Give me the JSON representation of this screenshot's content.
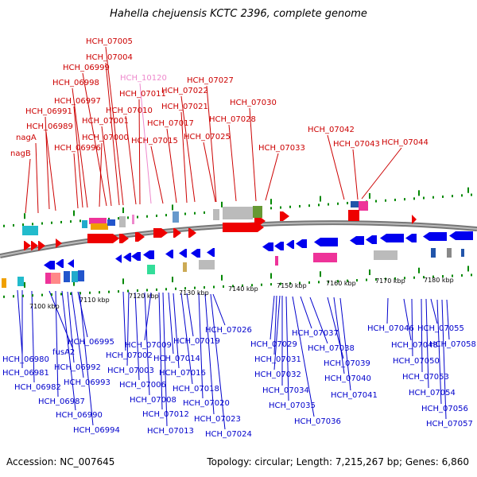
{
  "title": "Hahella chejuensis KCTC 2396, complete genome",
  "footer": {
    "accession": "Accession: NC_007645",
    "summary": "Topology: circular; Length: 7,215,267 bp; Genes: 6,860"
  },
  "colors": {
    "forward_label": "#cc0000",
    "reverse_label": "#0000cc",
    "pink_label": "#ee88cc",
    "forward_gene": "#ee0000",
    "reverse_gene": "#0000ee",
    "backbone": "#888888",
    "ticks": "#008800"
  },
  "scale_labels": [
    "7100 kbp",
    "7110 kbp",
    "7120 kbp",
    "7130 kbp",
    "7140 kbp",
    "7150 kbp",
    "7160 kbp",
    "7170 kbp",
    "7180 kbp"
  ],
  "top_genes": [
    "nagB",
    "nagA",
    "HCH_06989",
    "HCH_06991",
    "HCH_06996",
    "HCH_06997",
    "HCH_06998",
    "HCH_07000",
    "HCH_06999",
    "HCH_07001",
    "HCH_07004",
    "HCH_07005",
    "HCH_07010",
    "HCH_07011",
    "HCH_10120",
    "HCH_07015",
    "HCH_07017",
    "HCH_07021",
    "HCH_07022",
    "HCH_07025",
    "HCH_07027",
    "HCH_07028",
    "HCH_07030",
    "HCH_07033",
    "HCH_07042",
    "HCH_07043",
    "HCH_07044"
  ],
  "bottom_genes": [
    "HCH_06980",
    "HCH_06981",
    "HCH_06982",
    "fusA2",
    "HCH_06987",
    "HCH_06990",
    "HCH_06992",
    "HCH_06993",
    "HCH_06994",
    "HCH_06995",
    "HCH_07002",
    "HCH_07003",
    "HCH_07006",
    "HCH_07008",
    "HCH_07009",
    "HCH_07012",
    "HCH_07013",
    "HCH_07014",
    "HCH_07016",
    "HCH_07018",
    "HCH_07019",
    "HCH_07020",
    "HCH_07023",
    "HCH_07024",
    "HCH_07026",
    "HCH_07029",
    "HCH_07031",
    "HCH_07032",
    "HCH_07034",
    "HCH_07035",
    "HCH_07036",
    "HCH_07037",
    "HCH_07038",
    "HCH_07039",
    "HCH_07040",
    "HCH_07041",
    "HCH_07046",
    "HCH_07048",
    "HCH_07050",
    "HCH_07053",
    "HCH_07054",
    "HCH_07055",
    "HCH_07056",
    "HCH_07057",
    "HCH_07058"
  ],
  "pink_genes": [
    "HCH_10120"
  ]
}
